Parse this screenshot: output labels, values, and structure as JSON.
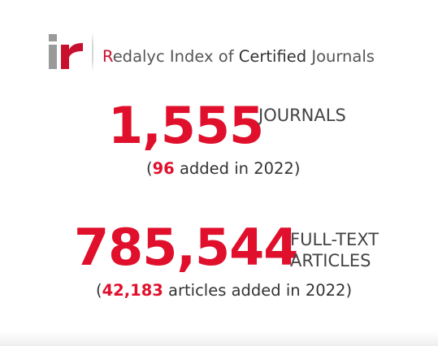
{
  "header": {
    "logo_alt": "ir",
    "title_initial": "R",
    "title_part1": "edalyc Index of ",
    "title_strong": "Certified",
    "title_part2": " Journals"
  },
  "journals": {
    "count": "1,555",
    "unit": "JOURNALS",
    "sub_open": "(",
    "sub_value": "96",
    "sub_text": " added in 2022)"
  },
  "articles": {
    "count": "785,544",
    "unit_line1": "FULL-TEXT",
    "unit_line2": "ARTICLES",
    "sub_open": "(",
    "sub_value": "42,183",
    "sub_text": " articles added in 2022)"
  },
  "colors": {
    "accent": "#e0102c",
    "logo_gray": "#9a9a9a",
    "text": "#333333"
  }
}
